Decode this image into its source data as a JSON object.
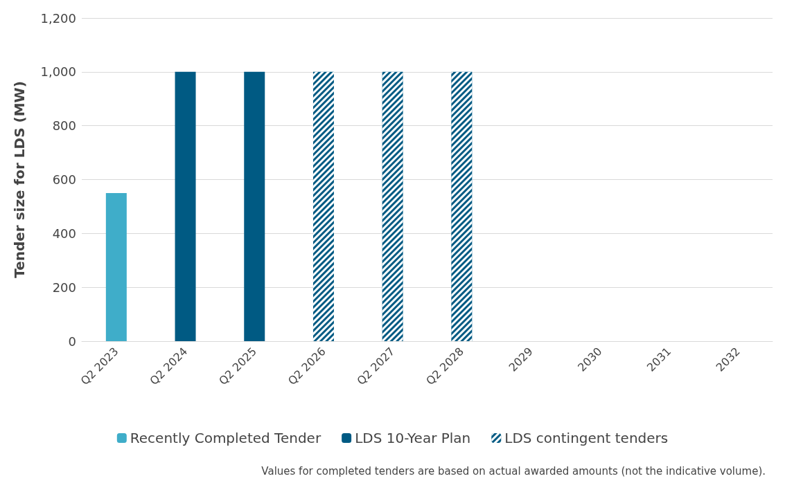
{
  "chart_data": {
    "type": "bar",
    "ylabel": "Tender size for LDS (MW)",
    "categories": [
      "Q2 2023",
      "Q2 2024",
      "Q2 2025",
      "Q2 2026",
      "Q2 2027",
      "Q2 2028",
      "2029",
      "2030",
      "2031",
      "2032"
    ],
    "stacked": true,
    "series": [
      {
        "name": "Recently Completed Tender",
        "color": "#3fadc9",
        "values": [
          550,
          null,
          null,
          null,
          null,
          null,
          null,
          null,
          null,
          null
        ]
      },
      {
        "name": "LDS 10-Year Plan",
        "color": "#005a83",
        "values": [
          null,
          1000,
          1000,
          null,
          null,
          null,
          null,
          null,
          null,
          null
        ]
      },
      {
        "name": "LDS contingent tenders",
        "color": "#005a83",
        "values": [
          null,
          null,
          null,
          1000,
          1000,
          1000,
          null,
          null,
          null,
          null
        ]
      }
    ],
    "ylim": [
      0,
      1200
    ],
    "yticks": [
      0,
      200,
      400,
      600,
      800,
      {
        "value": 1000,
        "label": "1,000"
      },
      {
        "value": 1200,
        "label": "1,200"
      }
    ],
    "grid": "y",
    "legend": "bottom",
    "annotations": [
      "Values for completed tenders are based on actual awarded amounts (not the indicative volume)."
    ]
  }
}
